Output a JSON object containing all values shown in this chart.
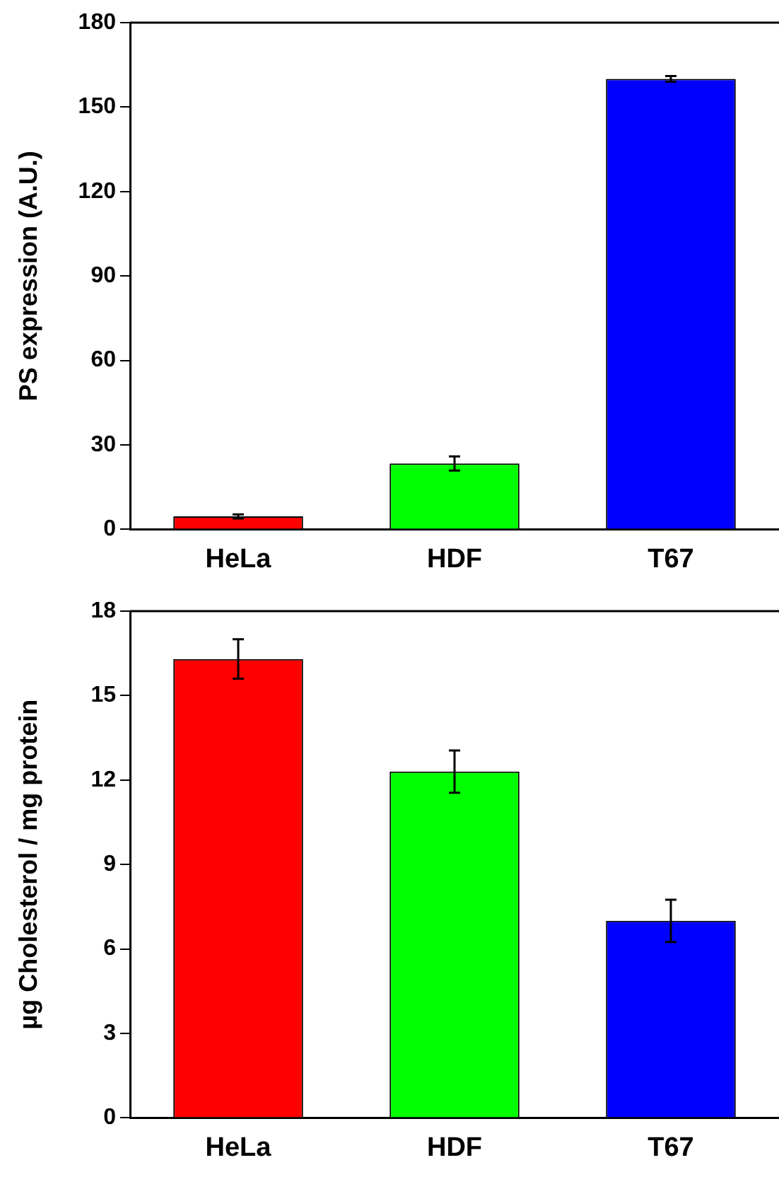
{
  "chart_data": [
    {
      "type": "bar",
      "ylabel": "PS expression (A.U.)",
      "categories": [
        "HeLa",
        "HDF",
        "T67"
      ],
      "values": [
        4.6,
        23.4,
        160
      ],
      "errors": [
        0.7,
        2.5,
        1
      ],
      "colors": [
        "#ff0000",
        "#00ff00",
        "#0000ff"
      ],
      "ylim": [
        0,
        180
      ],
      "yticks": [
        0,
        30,
        60,
        90,
        120,
        150,
        180
      ],
      "grid": false,
      "legend": false
    },
    {
      "type": "bar",
      "ylabel": "µg Cholesterol / mg protein",
      "categories": [
        "HeLa",
        "HDF",
        "T67"
      ],
      "values": [
        16.3,
        12.3,
        7.0
      ],
      "errors": [
        0.7,
        0.75,
        0.75
      ],
      "colors": [
        "#ff0000",
        "#00ff00",
        "#0000ff"
      ],
      "ylim": [
        0,
        18
      ],
      "yticks": [
        0,
        3,
        6,
        9,
        12,
        15,
        18
      ],
      "grid": false,
      "legend": false
    }
  ]
}
